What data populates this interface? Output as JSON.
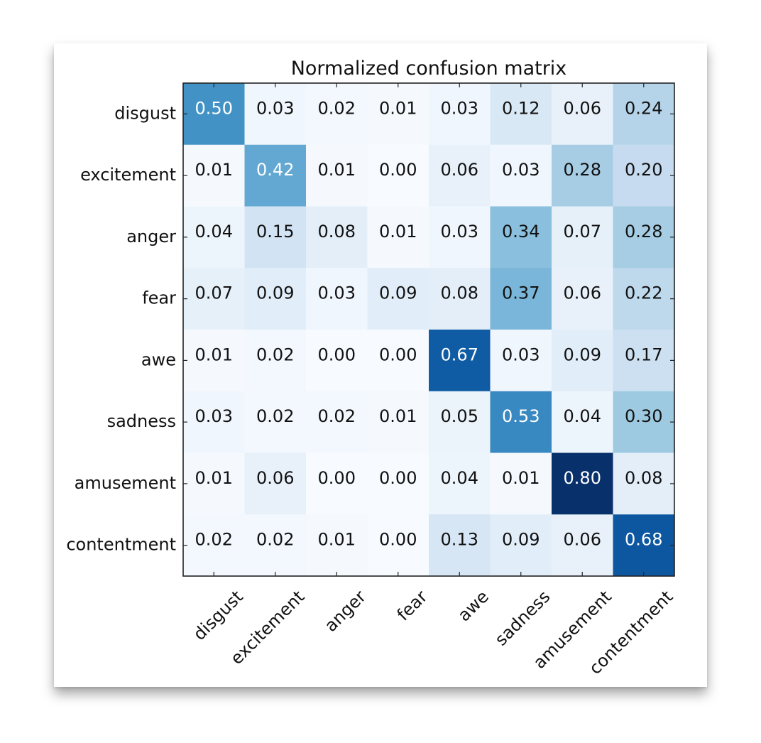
{
  "chart_data": {
    "type": "heatmap",
    "title": "Normalized confusion matrix",
    "xlabel": "",
    "ylabel": "",
    "categories": [
      "disgust",
      "excitement",
      "anger",
      "fear",
      "awe",
      "sadness",
      "amusement",
      "contentment"
    ],
    "matrix": [
      [
        0.5,
        0.03,
        0.02,
        0.01,
        0.03,
        0.12,
        0.06,
        0.24
      ],
      [
        0.01,
        0.42,
        0.01,
        0.0,
        0.06,
        0.03,
        0.28,
        0.2
      ],
      [
        0.04,
        0.15,
        0.08,
        0.01,
        0.03,
        0.34,
        0.07,
        0.28
      ],
      [
        0.07,
        0.09,
        0.03,
        0.09,
        0.08,
        0.37,
        0.06,
        0.22
      ],
      [
        0.01,
        0.02,
        0.0,
        0.0,
        0.67,
        0.03,
        0.09,
        0.17
      ],
      [
        0.03,
        0.02,
        0.02,
        0.01,
        0.05,
        0.53,
        0.04,
        0.3
      ],
      [
        0.01,
        0.06,
        0.0,
        0.0,
        0.04,
        0.01,
        0.8,
        0.08
      ],
      [
        0.02,
        0.02,
        0.01,
        0.0,
        0.13,
        0.09,
        0.06,
        0.68
      ]
    ],
    "colormap": "Blues",
    "color_scale": [
      0.0,
      0.8
    ],
    "grid": false,
    "legend": "none"
  }
}
